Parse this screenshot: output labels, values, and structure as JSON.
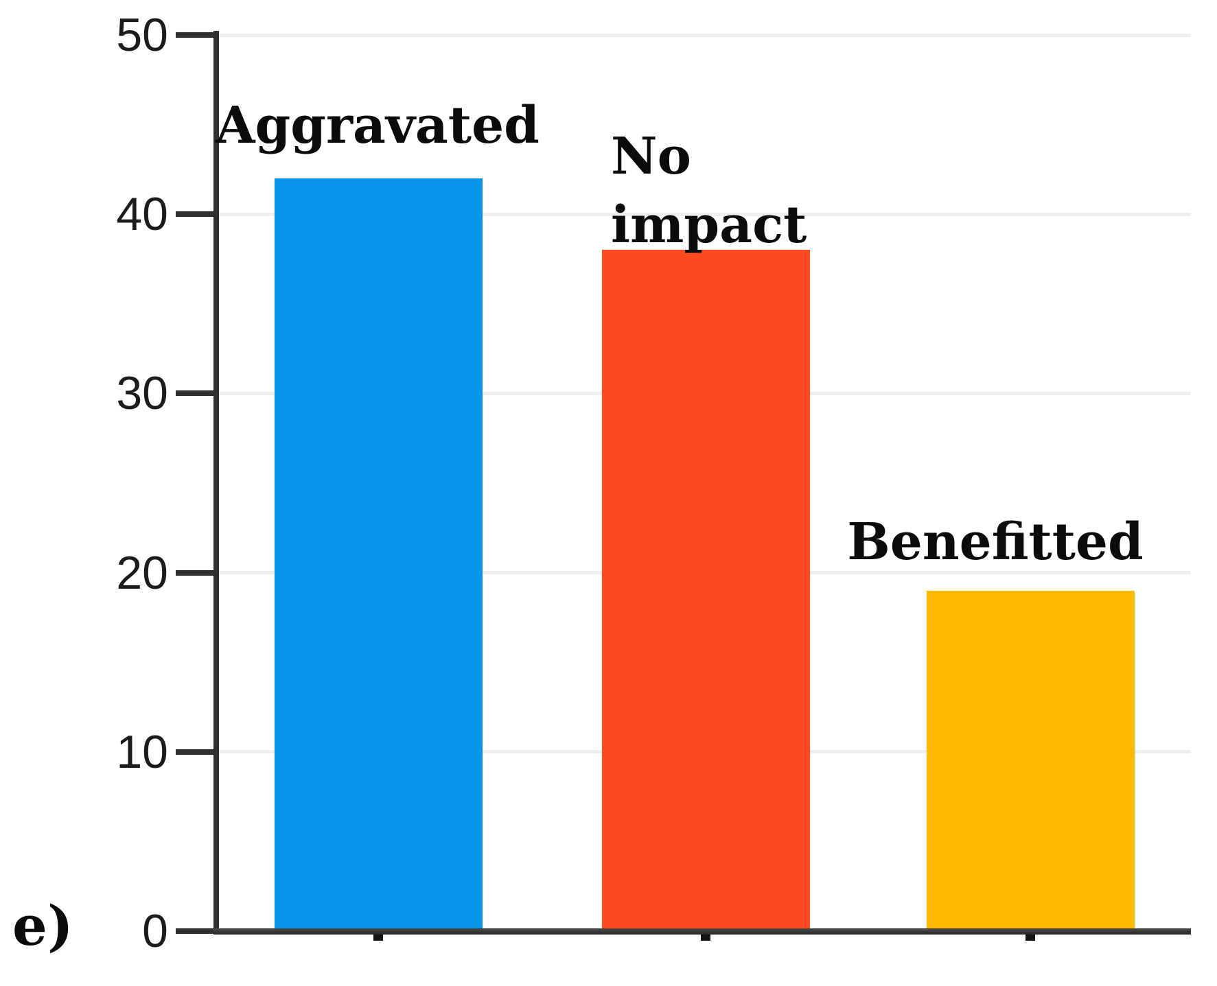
{
  "figure_label": "e)",
  "chart_data": {
    "type": "bar",
    "categories": [
      "Aggravated",
      "No impact",
      "Benefitted"
    ],
    "values": [
      42,
      38,
      19
    ],
    "bar_colors": [
      "#0995EC",
      "#FB4A20",
      "#FFB900"
    ],
    "ylim": [
      0,
      50
    ],
    "yticks": [
      0,
      10,
      20,
      30,
      40,
      50
    ],
    "grid": "horizontal-light",
    "gridline_color": "#EFEFEF",
    "axis_color": "#2F2F2F",
    "category_label_position": "above-bars",
    "legend": "none"
  }
}
